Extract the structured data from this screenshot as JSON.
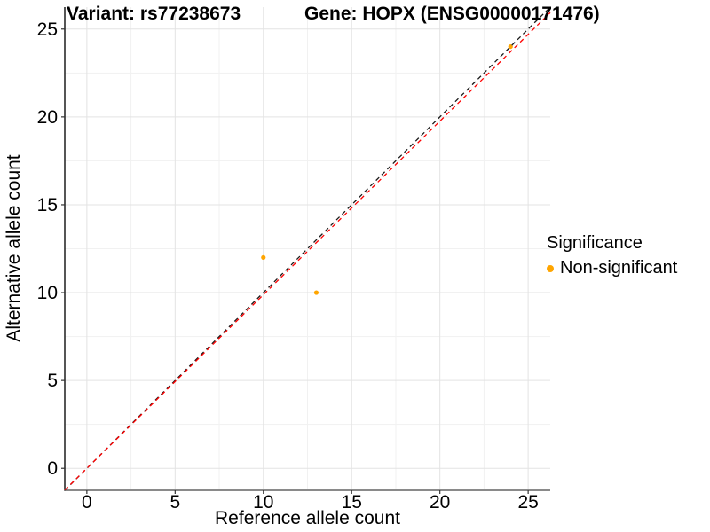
{
  "titles": {
    "left": "Variant: rs77238673",
    "right": "Gene: HOPX (ENSG00000171476)"
  },
  "axes": {
    "x_label": "Reference allele count",
    "y_label": "Alternative allele count"
  },
  "legend": {
    "title": "Significance",
    "items": [
      {
        "label": "Non-significant",
        "color": "#FFA500"
      }
    ]
  },
  "colors": {
    "background": "#FFFFFF",
    "grid_major": "#E3E3E3",
    "grid_minor": "#F1F1F1",
    "axis_line_x": "#8A8A8A",
    "axis_line_y": "#2B2B2B",
    "tick_mark": "#333333",
    "tick_label": "#000000"
  },
  "chart_data": {
    "type": "scatter",
    "title_left": "Variant: rs77238673",
    "title_right": "Gene: HOPX (ENSG00000171476)",
    "xlabel": "Reference allele count",
    "ylabel": "Alternative allele count",
    "xlim": [
      -1.25,
      26.25
    ],
    "ylim": [
      -1.25,
      26.25
    ],
    "x_ticks": [
      0,
      5,
      10,
      15,
      20,
      25
    ],
    "y_ticks": [
      0,
      5,
      10,
      15,
      20,
      25
    ],
    "x_tick_labels": [
      "0",
      "5",
      "10",
      "15",
      "20",
      "25"
    ],
    "y_tick_labels": [
      "0",
      "5",
      "10",
      "15",
      "20",
      "25"
    ],
    "x_minor_ticks": [
      2.5,
      7.5,
      12.5,
      17.5,
      22.5
    ],
    "y_minor_ticks": [
      2.5,
      7.5,
      12.5,
      17.5,
      22.5
    ],
    "grid": true,
    "legend_position": "right",
    "series": [
      {
        "name": "Non-significant",
        "color": "#FFA500",
        "points": [
          [
            10,
            12
          ],
          [
            13,
            10
          ],
          [
            24,
            24
          ]
        ]
      }
    ],
    "lines": [
      {
        "name": "identity",
        "slope": 1.0,
        "intercept": 0,
        "color": "#1A1A1A",
        "style": "dashed"
      },
      {
        "name": "expected",
        "slope": 0.988,
        "intercept": 0,
        "color": "#FF0000",
        "style": "dashed"
      }
    ]
  }
}
